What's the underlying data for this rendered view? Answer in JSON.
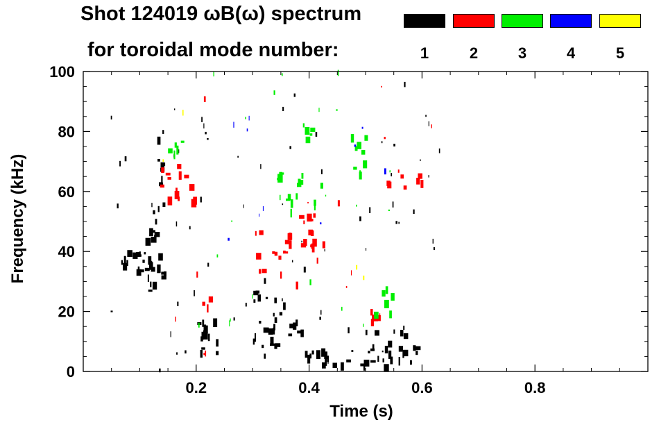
{
  "chart_data": {
    "type": "spectrogram",
    "title_line1": "Shot 124019 ωB(ω) spectrum",
    "title_line2": "for toroidal mode number:",
    "xlabel": "Time (s)",
    "ylabel": "Frequency (kHz)",
    "xlim": [
      0.0,
      1.0
    ],
    "ylim": [
      0,
      100
    ],
    "xticks": [
      0.2,
      0.4,
      0.6,
      0.8
    ],
    "xtick_labels": [
      "0.2",
      "0.4",
      "0.6",
      "0.8"
    ],
    "yticks": [
      0,
      20,
      40,
      60,
      80,
      100
    ],
    "ytick_labels": [
      "0",
      "20",
      "40",
      "60",
      "80",
      "100"
    ],
    "legend": [
      {
        "label": "1",
        "color": "#000000"
      },
      {
        "label": "2",
        "color": "#ff0000"
      },
      {
        "label": "3",
        "color": "#00ee00"
      },
      {
        "label": "4",
        "color": "#0000ff"
      },
      {
        "label": "5",
        "color": "#ffff00"
      }
    ],
    "features": [
      {
        "mode": 1,
        "t0": 0.07,
        "t1": 0.12,
        "f0": 33,
        "f1": 40,
        "blocks": 14
      },
      {
        "mode": 1,
        "t0": 0.1,
        "t1": 0.145,
        "f0": 20,
        "f1": 55,
        "blocks": 22
      },
      {
        "mode": 1,
        "t0": 0.13,
        "t1": 0.145,
        "f0": 55,
        "f1": 85,
        "blocks": 10
      },
      {
        "mode": 1,
        "t0": 0.2,
        "t1": 0.235,
        "f0": 4,
        "f1": 18,
        "blocks": 14
      },
      {
        "mode": 1,
        "t0": 0.3,
        "t1": 0.355,
        "f0": 8,
        "f1": 28,
        "blocks": 22
      },
      {
        "mode": 1,
        "t0": 0.36,
        "t1": 0.385,
        "f0": 12,
        "f1": 18,
        "blocks": 6
      },
      {
        "mode": 1,
        "t0": 0.385,
        "t1": 0.47,
        "f0": 1,
        "f1": 7,
        "blocks": 14
      },
      {
        "mode": 1,
        "t0": 0.49,
        "t1": 0.59,
        "f0": 1,
        "f1": 14,
        "blocks": 26
      },
      {
        "mode": 1,
        "t0": 0.03,
        "t1": 0.63,
        "f0": 0,
        "f1": 100,
        "blocks": 70,
        "scatter": true
      },
      {
        "mode": 2,
        "t0": 0.135,
        "t1": 0.195,
        "f0": 56,
        "f1": 71,
        "blocks": 14
      },
      {
        "mode": 2,
        "t0": 0.21,
        "t1": 0.225,
        "f0": 20,
        "f1": 26,
        "blocks": 3
      },
      {
        "mode": 2,
        "t0": 0.3,
        "t1": 0.38,
        "f0": 28,
        "f1": 48,
        "blocks": 16
      },
      {
        "mode": 2,
        "t0": 0.38,
        "t1": 0.445,
        "f0": 40,
        "f1": 52,
        "blocks": 14
      },
      {
        "mode": 2,
        "t0": 0.49,
        "t1": 0.52,
        "f0": 14,
        "f1": 20,
        "blocks": 5
      },
      {
        "mode": 2,
        "t0": 0.535,
        "t1": 0.6,
        "f0": 59,
        "f1": 67,
        "blocks": 8
      },
      {
        "mode": 2,
        "t0": 0.15,
        "t1": 0.64,
        "f0": 5,
        "f1": 98,
        "blocks": 14,
        "scatter": true
      },
      {
        "mode": 3,
        "t0": 0.15,
        "t1": 0.19,
        "f0": 70,
        "f1": 77,
        "blocks": 5
      },
      {
        "mode": 3,
        "t0": 0.34,
        "t1": 0.44,
        "f0": 52,
        "f1": 66,
        "blocks": 16
      },
      {
        "mode": 3,
        "t0": 0.38,
        "t1": 0.425,
        "f0": 77,
        "f1": 83,
        "blocks": 6
      },
      {
        "mode": 3,
        "t0": 0.46,
        "t1": 0.51,
        "f0": 65,
        "f1": 78,
        "blocks": 8
      },
      {
        "mode": 3,
        "t0": 0.51,
        "t1": 0.545,
        "f0": 17,
        "f1": 28,
        "blocks": 6
      },
      {
        "mode": 3,
        "t0": 0.2,
        "t1": 0.55,
        "f0": 15,
        "f1": 100,
        "blocks": 22,
        "scatter": true
      },
      {
        "mode": 4,
        "t0": 0.15,
        "t1": 0.55,
        "f0": 30,
        "f1": 88,
        "blocks": 10,
        "scatter": true
      },
      {
        "mode": 5,
        "t0": 0.13,
        "t1": 0.52,
        "f0": 30,
        "f1": 90,
        "blocks": 4,
        "scatter": true
      }
    ]
  }
}
